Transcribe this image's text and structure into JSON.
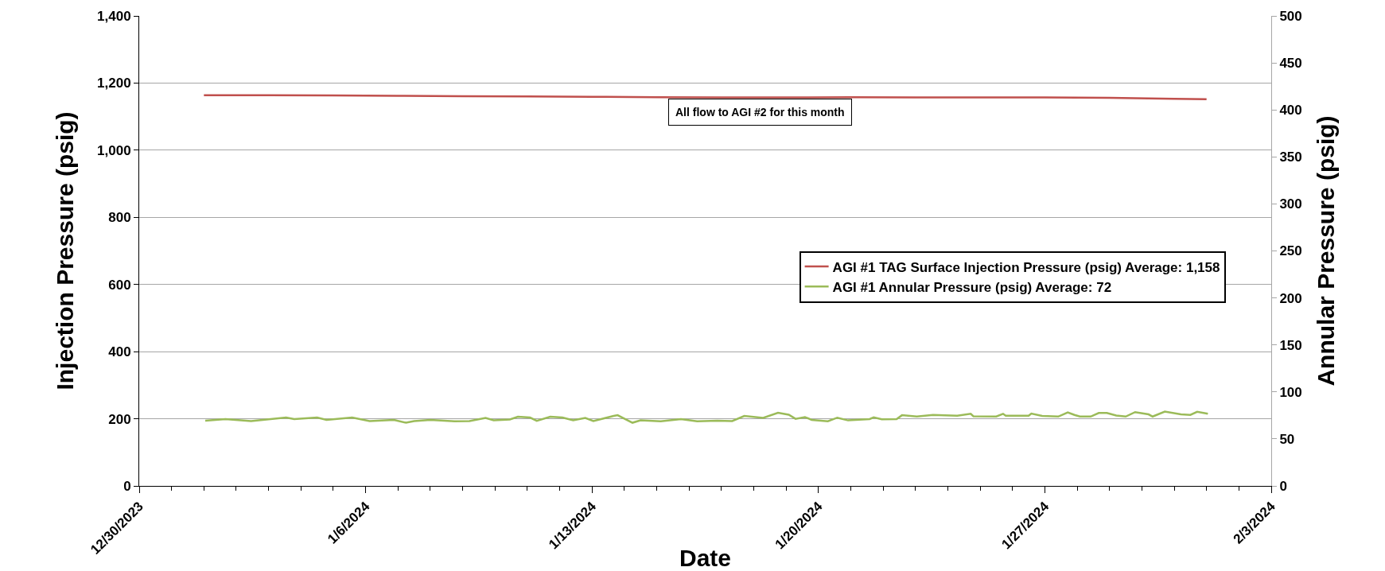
{
  "chart_data": {
    "type": "line",
    "xlabel": "Date",
    "ylabel": "Injection Pressure (psig)",
    "y2label": "Annular Pressure (psig)",
    "annotations": [
      "All flow to AGI #2 for this month"
    ],
    "xlim": [
      "2023-12-30",
      "2024-02-03"
    ],
    "xticks": [
      {
        "value": "2023-12-30",
        "label": "12/30/2023"
      },
      {
        "value": "2024-01-06",
        "label": "1/6/2024"
      },
      {
        "value": "2024-01-13",
        "label": "1/13/2024"
      },
      {
        "value": "2024-01-20",
        "label": "1/20/2024"
      },
      {
        "value": "2024-01-27",
        "label": "1/27/2024"
      },
      {
        "value": "2024-02-03",
        "label": "2/3/2024"
      }
    ],
    "ylim": [
      0,
      1400
    ],
    "yticks": [
      0,
      200,
      400,
      600,
      800,
      {
        "value": 1000,
        "label": "1,000"
      },
      {
        "value": 1200,
        "label": "1,200"
      },
      {
        "value": 1400,
        "label": "1,400"
      }
    ],
    "y2lim": [
      0,
      500
    ],
    "y2ticks": [
      0,
      50,
      100,
      150,
      200,
      250,
      300,
      350,
      400,
      450,
      500
    ],
    "grid": "y",
    "legend": "right",
    "marker": "none",
    "line_style": "solid",
    "series": [
      {
        "name": "AGI #1 TAG Surface Injection Pressure (psig) Average: 1,158",
        "color": "#c0504d",
        "x": [
          "2024-01-01T00:00",
          "2024-01-03T00:00",
          "2024-01-05T00:00",
          "2024-01-07T00:00",
          "2024-01-09T00:00",
          "2024-01-11T00:00",
          "2024-01-13T00:00",
          "2024-01-15T00:00",
          "2024-01-17T00:00",
          "2024-01-19T00:00",
          "2024-01-21T00:00",
          "2024-01-23T00:00",
          "2024-01-25T00:00",
          "2024-01-27T00:00",
          "2024-01-29T00:00",
          "2024-01-31T00:00",
          "2024-02-01T00:00"
        ],
        "values": [
          1164,
          1164,
          1163,
          1162,
          1161,
          1160,
          1159,
          1158,
          1157,
          1157,
          1158,
          1157,
          1157,
          1157,
          1156,
          1153,
          1152
        ]
      },
      {
        "name": "AGI #1 Annular Pressure (psig) Average: 72",
        "color": "#9bbb59",
        "axis": "y2",
        "x": [
          "2024-01-01T01:00",
          "2024-01-01T16:00",
          "2024-01-02T11:00",
          "2024-01-03T13:00",
          "2024-01-03T19:00",
          "2024-01-04T12:00",
          "2024-01-04T19:00",
          "2024-01-05T14:00",
          "2024-01-06T03:00",
          "2024-01-06T21:00",
          "2024-01-07T06:00",
          "2024-01-07T12:00",
          "2024-01-08T00:00",
          "2024-01-08T18:00",
          "2024-01-09T05:00",
          "2024-01-09T17:00",
          "2024-01-09T23:00",
          "2024-01-10T11:00",
          "2024-01-10T17:00",
          "2024-01-11T02:00",
          "2024-01-11T07:00",
          "2024-01-11T17:00",
          "2024-01-12T02:00",
          "2024-01-12T10:00",
          "2024-01-12T19:00",
          "2024-01-13T01:00",
          "2024-01-13T16:00",
          "2024-01-13T19:00",
          "2024-01-14T06:00",
          "2024-01-14T12:00",
          "2024-01-15T03:00",
          "2024-01-15T18:00",
          "2024-01-16T06:00",
          "2024-01-16T21:00",
          "2024-01-17T08:00",
          "2024-01-17T17:00",
          "2024-01-18T07:00",
          "2024-01-18T18:00",
          "2024-01-19T02:00",
          "2024-01-19T07:00",
          "2024-01-19T14:00",
          "2024-01-19T19:00",
          "2024-01-20T07:00",
          "2024-01-20T14:00",
          "2024-01-20T22:00",
          "2024-01-21T14:00",
          "2024-01-21T17:00",
          "2024-01-21T23:00",
          "2024-01-22T10:00",
          "2024-01-22T14:00",
          "2024-01-23T01:00",
          "2024-01-23T13:00",
          "2024-01-24T07:00",
          "2024-01-24T17:00",
          "2024-01-24T19:00",
          "2024-01-25T12:00",
          "2024-01-25T17:00",
          "2024-01-25T19:00",
          "2024-01-26T12:00",
          "2024-01-26T14:00",
          "2024-01-26T22:00",
          "2024-01-27T10:00",
          "2024-01-27T17:00",
          "2024-01-27T22:00",
          "2024-01-28T02:00",
          "2024-01-28T10:00",
          "2024-01-28T16:00",
          "2024-01-28T22:00",
          "2024-01-29T05:00",
          "2024-01-29T12:00",
          "2024-01-29T19:00",
          "2024-01-30T05:00",
          "2024-01-30T08:00",
          "2024-01-30T17:00",
          "2024-01-31T05:00",
          "2024-01-31T12:00",
          "2024-01-31T17:00",
          "2024-02-01T01:00"
        ],
        "values": [
          69.3,
          71,
          69,
          72.7,
          71,
          72.7,
          70.2,
          72.7,
          69,
          70.2,
          67.2,
          69,
          70.2,
          68.7,
          69,
          72.3,
          69.8,
          70.6,
          73.5,
          72.7,
          69.3,
          73.5,
          72.7,
          69.8,
          72.3,
          69,
          74.4,
          75.2,
          67.2,
          69.8,
          68.7,
          71,
          68.7,
          69.3,
          69,
          74.4,
          72.3,
          77.8,
          75.7,
          71.4,
          73.2,
          70.3,
          68.8,
          72.6,
          69.7,
          71.1,
          72.9,
          70.8,
          71.1,
          75.2,
          73.8,
          75.5,
          74.6,
          76.7,
          74.1,
          73.8,
          76.7,
          74.6,
          74.6,
          77,
          74.4,
          73.8,
          78.2,
          75.5,
          73.8,
          73.8,
          77.6,
          77.6,
          74.9,
          73.8,
          78.5,
          76.1,
          73.8,
          79,
          76.1,
          75.5,
          78.8,
          76.7
        ]
      }
    ]
  }
}
